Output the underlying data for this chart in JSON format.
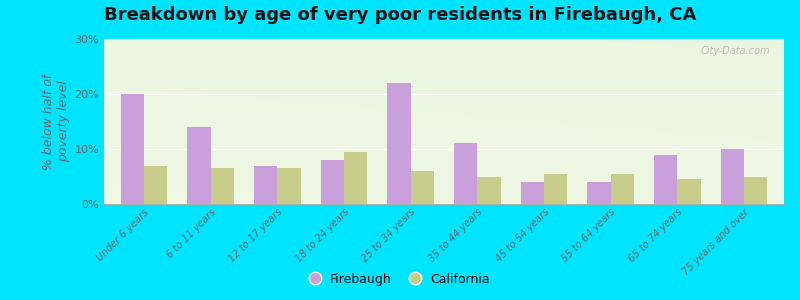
{
  "title": "Breakdown by age of very poor residents in Firebaugh, CA",
  "ylabel": "% below half of\npoverty level",
  "categories": [
    "Under 6 years",
    "6 to 11 years",
    "12 to 17 years",
    "18 to 24 years",
    "25 to 34 years",
    "35 to 44 years",
    "45 to 54 years",
    "55 to 64 years",
    "65 to 74 years",
    "75 years and over"
  ],
  "firebaugh_values": [
    20,
    14,
    7,
    8,
    22,
    11,
    4,
    4,
    9,
    10
  ],
  "california_values": [
    7,
    6.5,
    6.5,
    9.5,
    6,
    5,
    5.5,
    5.5,
    4.5,
    5
  ],
  "firebaugh_color": "#c9a0dc",
  "california_color": "#c8cc8a",
  "background_outer": "#00e5ff",
  "background_plot_tl": "#eef5e8",
  "background_plot_tr": "#d8ecc8",
  "background_plot_bl": "#f8faf5",
  "background_plot_br": "#eef5e8",
  "ylim": [
    0,
    30
  ],
  "yticks": [
    0,
    10,
    20,
    30
  ],
  "ytick_labels": [
    "0%",
    "10%",
    "20%",
    "30%"
  ],
  "bar_width": 0.35,
  "title_fontsize": 13,
  "axis_label_fontsize": 9,
  "tick_fontsize": 8,
  "legend_labels": [
    "Firebaugh",
    "California"
  ],
  "watermark": "City-Data.com",
  "ylabel_color": "#666666",
  "tick_color": "#666666"
}
